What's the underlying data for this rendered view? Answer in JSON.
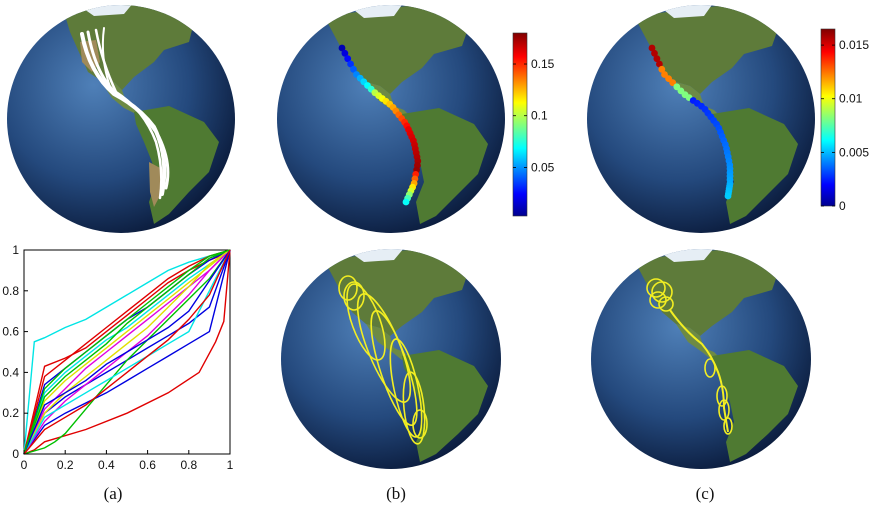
{
  "figure": {
    "captions": [
      "(a)",
      "(b)",
      "(c)"
    ]
  },
  "colorbar_b": {
    "tick_labels": [
      "0.15",
      "0.1",
      "0.05"
    ],
    "ticks": [
      0.15,
      0.1,
      0.05
    ],
    "range": [
      0.003,
      0.18
    ],
    "colormap": "jet"
  },
  "colorbar_c": {
    "tick_labels": [
      "0.015",
      "0.01",
      "0.005",
      "0"
    ],
    "ticks": [
      0.015,
      0.01,
      0.005,
      0
    ],
    "range": [
      0,
      0.0165
    ],
    "colormap": "jet"
  },
  "colors": {
    "ocean_light": "#3f6fa8",
    "ocean_dark": "#0a1a3a",
    "land": "#5e7b3a",
    "desert": "#a08a5a",
    "ice": "#e6eef5",
    "track_white": "#ffffff",
    "ellipse_yellow": "#f2ee22"
  },
  "chart_data": {
    "type": "line",
    "xlim": [
      0,
      1
    ],
    "ylim": [
      0,
      1
    ],
    "xtick_labels": [
      "0",
      "0.2",
      "0.4",
      "0.6",
      "0.8",
      "1"
    ],
    "ytick_labels": [
      "0",
      "0.2",
      "0.4",
      "0.6",
      "0.8",
      "1"
    ],
    "xticks": [
      0,
      0.2,
      0.4,
      0.6,
      0.8,
      1
    ],
    "yticks": [
      0,
      0.2,
      0.4,
      0.6,
      0.8,
      1
    ],
    "series": [
      {
        "color": "#00e5e5",
        "x": [
          0,
          0.05,
          0.1,
          0.2,
          0.3,
          0.4,
          0.5,
          0.6,
          0.7,
          0.8,
          0.9,
          0.95,
          1
        ],
        "y": [
          0,
          0.55,
          0.57,
          0.62,
          0.66,
          0.72,
          0.78,
          0.84,
          0.9,
          0.94,
          0.97,
          0.98,
          1
        ]
      },
      {
        "color": "#e00000",
        "x": [
          0,
          0.1,
          0.2,
          0.3,
          0.4,
          0.5,
          0.6,
          0.7,
          0.8,
          0.9,
          0.95,
          1
        ],
        "y": [
          0,
          0.43,
          0.47,
          0.52,
          0.6,
          0.68,
          0.76,
          0.84,
          0.9,
          0.95,
          0.97,
          1
        ]
      },
      {
        "color": "#e00000",
        "x": [
          0,
          0.05,
          0.1,
          0.3,
          0.5,
          0.7,
          0.85,
          0.93,
          0.97,
          1
        ],
        "y": [
          0,
          0.02,
          0.06,
          0.12,
          0.2,
          0.3,
          0.4,
          0.55,
          0.65,
          1
        ]
      },
      {
        "color": "#0000e0",
        "x": [
          0,
          0.1,
          0.2,
          0.3,
          0.4,
          0.5,
          0.6,
          0.7,
          0.8,
          0.9,
          1
        ],
        "y": [
          0,
          0.14,
          0.2,
          0.25,
          0.3,
          0.36,
          0.42,
          0.48,
          0.54,
          0.6,
          1
        ]
      },
      {
        "color": "#0000e0",
        "x": [
          0,
          0.1,
          0.2,
          0.3,
          0.4,
          0.5,
          0.6,
          0.7,
          0.8,
          0.9,
          1
        ],
        "y": [
          0,
          0.2,
          0.28,
          0.34,
          0.4,
          0.46,
          0.52,
          0.58,
          0.64,
          0.72,
          1
        ]
      },
      {
        "color": "#00c000",
        "x": [
          0,
          0.1,
          0.15,
          0.2,
          0.3,
          0.4,
          0.5,
          0.6,
          0.7,
          0.8,
          0.9,
          1
        ],
        "y": [
          0,
          0.03,
          0.06,
          0.1,
          0.22,
          0.34,
          0.46,
          0.56,
          0.66,
          0.76,
          0.86,
          1
        ]
      },
      {
        "color": "#e000e0",
        "x": [
          0,
          0.1,
          0.2,
          0.3,
          0.4,
          0.5,
          0.6,
          0.7,
          0.8,
          0.9,
          1
        ],
        "y": [
          0,
          0.22,
          0.32,
          0.42,
          0.5,
          0.58,
          0.66,
          0.74,
          0.82,
          0.9,
          1
        ]
      },
      {
        "color": "#e0e000",
        "x": [
          0,
          0.1,
          0.2,
          0.3,
          0.4,
          0.5,
          0.6,
          0.7,
          0.8,
          0.9,
          1
        ],
        "y": [
          0,
          0.26,
          0.36,
          0.44,
          0.52,
          0.6,
          0.68,
          0.76,
          0.84,
          0.92,
          1
        ]
      },
      {
        "color": "#00e5e5",
        "x": [
          0,
          0.1,
          0.2,
          0.3,
          0.4,
          0.5,
          0.6,
          0.7,
          0.8,
          0.9,
          1
        ],
        "y": [
          0,
          0.3,
          0.4,
          0.48,
          0.56,
          0.62,
          0.7,
          0.78,
          0.86,
          0.93,
          1
        ]
      },
      {
        "color": "#0000e0",
        "x": [
          0,
          0.1,
          0.2,
          0.3,
          0.4,
          0.5,
          0.6,
          0.7,
          0.8,
          0.9,
          1
        ],
        "y": [
          0,
          0.34,
          0.42,
          0.5,
          0.58,
          0.66,
          0.72,
          0.8,
          0.88,
          0.95,
          1
        ]
      },
      {
        "color": "#e00000",
        "x": [
          0,
          0.1,
          0.2,
          0.3,
          0.4,
          0.5,
          0.6,
          0.7,
          0.8,
          0.9,
          1
        ],
        "y": [
          0,
          0.38,
          0.46,
          0.54,
          0.62,
          0.7,
          0.78,
          0.86,
          0.92,
          0.97,
          1
        ]
      },
      {
        "color": "#00c000",
        "x": [
          0,
          0.1,
          0.2,
          0.3,
          0.4,
          0.5,
          0.6,
          0.7,
          0.8,
          0.9,
          1
        ],
        "y": [
          0,
          0.28,
          0.38,
          0.46,
          0.54,
          0.64,
          0.72,
          0.8,
          0.88,
          0.96,
          1
        ]
      },
      {
        "color": "#e000e0",
        "x": [
          0,
          0.1,
          0.2,
          0.3,
          0.4,
          0.5,
          0.6,
          0.7,
          0.8,
          0.9,
          1
        ],
        "y": [
          0,
          0.16,
          0.26,
          0.34,
          0.42,
          0.5,
          0.58,
          0.68,
          0.78,
          0.9,
          1
        ]
      },
      {
        "color": "#e0e000",
        "x": [
          0,
          0.1,
          0.2,
          0.3,
          0.4,
          0.5,
          0.6,
          0.7,
          0.8,
          0.9,
          1
        ],
        "y": [
          0,
          0.2,
          0.3,
          0.38,
          0.46,
          0.54,
          0.62,
          0.72,
          0.82,
          0.93,
          1
        ]
      },
      {
        "color": "#00e5e5",
        "x": [
          0,
          0.1,
          0.2,
          0.3,
          0.4,
          0.5,
          0.6,
          0.7,
          0.8,
          0.9,
          1
        ],
        "y": [
          0,
          0.18,
          0.24,
          0.3,
          0.36,
          0.42,
          0.48,
          0.54,
          0.6,
          0.8,
          1
        ]
      },
      {
        "color": "#0000e0",
        "x": [
          0,
          0.1,
          0.2,
          0.3,
          0.4,
          0.5,
          0.6,
          0.7,
          0.8,
          0.9,
          1
        ],
        "y": [
          0,
          0.24,
          0.3,
          0.36,
          0.44,
          0.5,
          0.56,
          0.62,
          0.7,
          0.85,
          1
        ]
      },
      {
        "color": "#00c000",
        "x": [
          0,
          0.1,
          0.2,
          0.3,
          0.4,
          0.5,
          0.6,
          0.7,
          0.8,
          0.9,
          1
        ],
        "y": [
          0,
          0.32,
          0.42,
          0.5,
          0.58,
          0.66,
          0.74,
          0.82,
          0.9,
          0.97,
          1
        ]
      },
      {
        "color": "#e00000",
        "x": [
          0,
          0.1,
          0.2,
          0.3,
          0.4,
          0.5,
          0.6,
          0.7,
          0.8,
          0.9,
          1
        ],
        "y": [
          0,
          0.12,
          0.18,
          0.24,
          0.32,
          0.4,
          0.48,
          0.56,
          0.66,
          0.78,
          1
        ]
      }
    ]
  }
}
